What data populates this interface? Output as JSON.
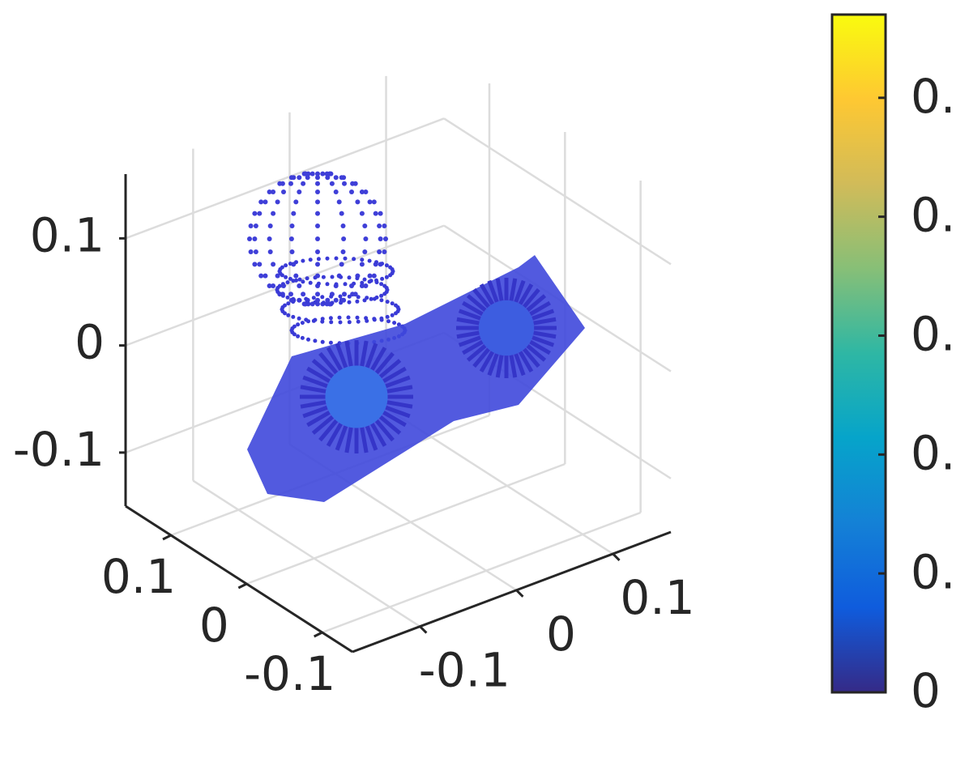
{
  "chart_data": {
    "type": "scatter3",
    "xlim": [
      -0.17,
      0.16
    ],
    "xticks": [
      -0.1,
      0,
      0.1
    ],
    "ylim": [
      -0.14,
      0.16
    ],
    "yticks": [
      -0.1,
      0,
      0.1
    ],
    "zlim": [
      -0.15,
      0.16
    ],
    "zticks": [
      -0.1,
      0,
      0.1
    ],
    "grid": true,
    "colorbar": {
      "clim": [
        0,
        0.57
      ],
      "ticks": [
        0,
        {
          "value": 0.1,
          "label": "0."
        },
        {
          "value": 0.2,
          "label": "0."
        },
        {
          "value": 0.3,
          "label": "0."
        },
        {
          "value": 0.4,
          "label": "0."
        },
        {
          "value": 0.5,
          "label": "0."
        }
      ],
      "colormap": [
        "#352a87",
        "#0f5cdd",
        "#1481d6",
        "#06a4ca",
        "#2eb7a4",
        "#87bf77",
        "#d1bb59",
        "#fec832",
        "#f9fb0e"
      ]
    }
  }
}
